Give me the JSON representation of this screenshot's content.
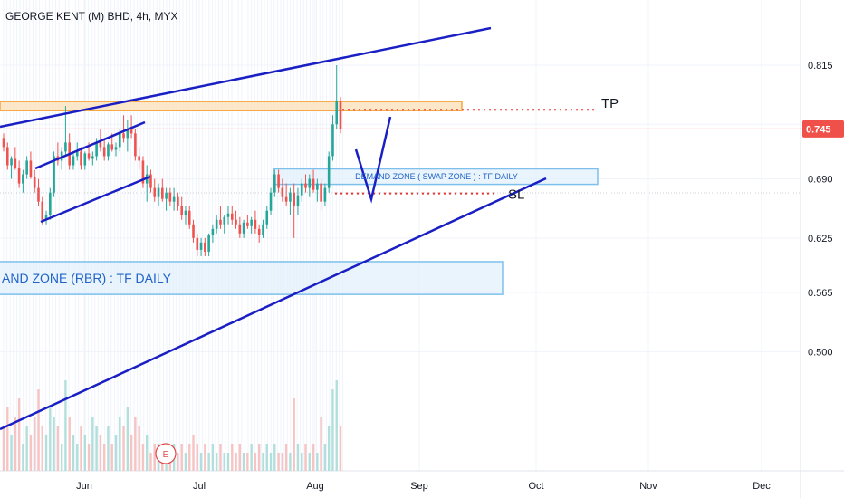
{
  "header": {
    "title": "GEORGE KENT (M) BHD, 4h, MYX"
  },
  "colors": {
    "up": "#26a69a",
    "down": "#ef5350",
    "trendline": "#1a1fc4",
    "zone_fill": "#e3f0fb",
    "zone_border": "#7ec0ec",
    "tp_fill": "#fde3bf",
    "tp_border": "#f5a742",
    "target_line": "#e53935",
    "price_tag": "#f0504a",
    "volume_up": "#b2dfdb",
    "volume_down": "#f6c4c2"
  },
  "chart_data": {
    "type": "candlestick",
    "symbol": "GEORGE KENT (M) BHD",
    "interval": "4h",
    "exchange": "MYX",
    "y_axis": {
      "ticks": [
        0.815,
        0.75,
        0.69,
        0.625,
        0.565,
        0.5
      ],
      "tick_labels": [
        "0.815",
        "",
        "0.690",
        "0.625",
        "0.565",
        "0.500"
      ],
      "range": [
        0.47,
        0.845
      ]
    },
    "x_axis": {
      "ticks": [
        "Jun",
        "Jul",
        "Aug",
        "Sep",
        "Oct",
        "Nov",
        "Dec"
      ]
    },
    "last_price": {
      "value": 0.745,
      "label": "0.745"
    },
    "zones": [
      {
        "name": "demand-zone-swap",
        "label": "DEMAND ZONE ( SWAP ZONE ) : TF DAILY",
        "low": 0.684,
        "high": 0.701
      },
      {
        "name": "demand-zone-rbr",
        "label": "AND ZONE (RBR) : TF DAILY",
        "low": 0.563,
        "high": 0.599
      },
      {
        "name": "tp-zone",
        "low": 0.765,
        "high": 0.775
      }
    ],
    "levels": [
      {
        "name": "tp",
        "label": "TP",
        "value": 0.766
      },
      {
        "name": "sl",
        "label": "SL",
        "value": 0.674
      }
    ],
    "earnings_marker": {
      "label": "E",
      "month": "Jul"
    },
    "candles": [
      [
        0.735,
        0.74,
        0.72,
        0.725
      ],
      [
        0.725,
        0.73,
        0.7,
        0.705
      ],
      [
        0.705,
        0.715,
        0.69,
        0.712
      ],
      [
        0.712,
        0.725,
        0.7,
        0.702
      ],
      [
        0.702,
        0.71,
        0.68,
        0.685
      ],
      [
        0.685,
        0.7,
        0.675,
        0.695
      ],
      [
        0.695,
        0.715,
        0.69,
        0.71
      ],
      [
        0.71,
        0.72,
        0.69,
        0.692
      ],
      [
        0.692,
        0.7,
        0.675,
        0.68
      ],
      [
        0.68,
        0.69,
        0.66,
        0.665
      ],
      [
        0.665,
        0.67,
        0.64,
        0.645
      ],
      [
        0.645,
        0.655,
        0.64,
        0.65
      ],
      [
        0.65,
        0.68,
        0.645,
        0.675
      ],
      [
        0.675,
        0.72,
        0.67,
        0.715
      ],
      [
        0.715,
        0.73,
        0.705,
        0.71
      ],
      [
        0.71,
        0.725,
        0.7,
        0.72
      ],
      [
        0.72,
        0.77,
        0.715,
        0.73
      ],
      [
        0.73,
        0.74,
        0.7,
        0.705
      ],
      [
        0.705,
        0.72,
        0.7,
        0.715
      ],
      [
        0.715,
        0.73,
        0.71,
        0.72
      ],
      [
        0.72,
        0.725,
        0.7,
        0.705
      ],
      [
        0.705,
        0.72,
        0.7,
        0.718
      ],
      [
        0.718,
        0.73,
        0.71,
        0.712
      ],
      [
        0.712,
        0.72,
        0.705,
        0.715
      ],
      [
        0.715,
        0.735,
        0.71,
        0.73
      ],
      [
        0.73,
        0.745,
        0.72,
        0.725
      ],
      [
        0.725,
        0.735,
        0.71,
        0.715
      ],
      [
        0.715,
        0.73,
        0.71,
        0.728
      ],
      [
        0.728,
        0.74,
        0.72,
        0.722
      ],
      [
        0.722,
        0.73,
        0.715,
        0.725
      ],
      [
        0.725,
        0.745,
        0.72,
        0.74
      ],
      [
        0.74,
        0.76,
        0.73,
        0.735
      ],
      [
        0.735,
        0.755,
        0.72,
        0.745
      ],
      [
        0.745,
        0.76,
        0.735,
        0.74
      ],
      [
        0.74,
        0.745,
        0.71,
        0.715
      ],
      [
        0.715,
        0.725,
        0.7,
        0.71
      ],
      [
        0.71,
        0.715,
        0.68,
        0.685
      ],
      [
        0.685,
        0.705,
        0.665,
        0.695
      ],
      [
        0.695,
        0.7,
        0.675,
        0.68
      ],
      [
        0.68,
        0.69,
        0.665,
        0.67
      ],
      [
        0.67,
        0.685,
        0.66,
        0.68
      ],
      [
        0.68,
        0.69,
        0.665,
        0.668
      ],
      [
        0.668,
        0.68,
        0.655,
        0.675
      ],
      [
        0.675,
        0.68,
        0.66,
        0.665
      ],
      [
        0.665,
        0.68,
        0.655,
        0.67
      ],
      [
        0.67,
        0.675,
        0.655,
        0.66
      ],
      [
        0.66,
        0.67,
        0.645,
        0.65
      ],
      [
        0.65,
        0.66,
        0.64,
        0.655
      ],
      [
        0.655,
        0.66,
        0.635,
        0.64
      ],
      [
        0.64,
        0.645,
        0.62,
        0.625
      ],
      [
        0.625,
        0.63,
        0.605,
        0.612
      ],
      [
        0.612,
        0.625,
        0.605,
        0.62
      ],
      [
        0.62,
        0.625,
        0.605,
        0.61
      ],
      [
        0.61,
        0.63,
        0.605,
        0.628
      ],
      [
        0.628,
        0.64,
        0.62,
        0.635
      ],
      [
        0.635,
        0.65,
        0.63,
        0.645
      ],
      [
        0.645,
        0.66,
        0.635,
        0.64
      ],
      [
        0.64,
        0.65,
        0.63,
        0.648
      ],
      [
        0.648,
        0.66,
        0.64,
        0.652
      ],
      [
        0.652,
        0.66,
        0.64,
        0.645
      ],
      [
        0.645,
        0.655,
        0.635,
        0.64
      ],
      [
        0.64,
        0.648,
        0.625,
        0.63
      ],
      [
        0.63,
        0.645,
        0.625,
        0.642
      ],
      [
        0.642,
        0.65,
        0.635,
        0.638
      ],
      [
        0.638,
        0.648,
        0.63,
        0.645
      ],
      [
        0.645,
        0.655,
        0.63,
        0.635
      ],
      [
        0.635,
        0.64,
        0.62,
        0.628
      ],
      [
        0.628,
        0.645,
        0.625,
        0.64
      ],
      [
        0.64,
        0.66,
        0.635,
        0.655
      ],
      [
        0.655,
        0.68,
        0.65,
        0.675
      ],
      [
        0.675,
        0.7,
        0.67,
        0.695
      ],
      [
        0.695,
        0.7,
        0.675,
        0.68
      ],
      [
        0.68,
        0.69,
        0.665,
        0.67
      ],
      [
        0.67,
        0.685,
        0.66,
        0.665
      ],
      [
        0.665,
        0.68,
        0.65,
        0.675
      ],
      [
        0.675,
        0.685,
        0.625,
        0.66
      ],
      [
        0.66,
        0.68,
        0.65,
        0.672
      ],
      [
        0.672,
        0.69,
        0.665,
        0.685
      ],
      [
        0.685,
        0.695,
        0.675,
        0.68
      ],
      [
        0.68,
        0.695,
        0.67,
        0.69
      ],
      [
        0.69,
        0.7,
        0.675,
        0.678
      ],
      [
        0.678,
        0.69,
        0.665,
        0.685
      ],
      [
        0.685,
        0.69,
        0.655,
        0.665
      ],
      [
        0.665,
        0.685,
        0.66,
        0.68
      ],
      [
        0.68,
        0.72,
        0.675,
        0.715
      ],
      [
        0.715,
        0.76,
        0.71,
        0.75
      ],
      [
        0.75,
        0.815,
        0.745,
        0.775
      ],
      [
        0.775,
        0.78,
        0.74,
        0.745
      ]
    ],
    "volume": [
      0.5,
      0.7,
      0.4,
      0.6,
      0.8,
      0.3,
      0.5,
      0.4,
      0.6,
      0.9,
      0.5,
      0.4,
      0.7,
      0.6,
      0.5,
      0.3,
      1.0,
      0.6,
      0.4,
      0.3,
      0.5,
      0.4,
      0.3,
      0.6,
      0.5,
      0.4,
      0.3,
      0.5,
      0.3,
      0.4,
      0.6,
      0.5,
      0.7,
      0.4,
      0.6,
      0.5,
      0.3,
      0.4,
      0.2,
      0.3,
      0.3,
      0.2,
      0.3,
      0.2,
      0.3,
      0.2,
      0.3,
      0.2,
      0.3,
      0.4,
      0.3,
      0.2,
      0.3,
      0.2,
      0.3,
      0.2,
      0.3,
      0.2,
      0.2,
      0.3,
      0.2,
      0.3,
      0.2,
      0.2,
      0.3,
      0.2,
      0.3,
      0.2,
      0.3,
      0.2,
      0.3,
      0.2,
      0.2,
      0.3,
      0.2,
      0.8,
      0.3,
      0.2,
      0.3,
      0.2,
      0.3,
      0.2,
      0.6,
      0.3,
      0.5,
      0.9,
      1.0,
      0.5
    ]
  }
}
